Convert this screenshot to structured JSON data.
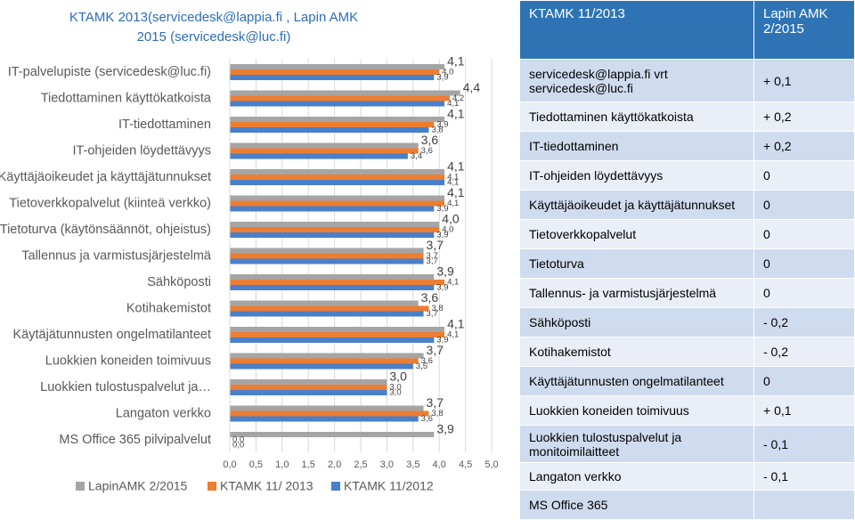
{
  "header_text": "KTAMK 2013(servicedesk@lappia.fi , Lapin AMK 2015 (servicedesk@luc.fi)",
  "chart_data": {
    "type": "bar",
    "orientation": "horizontal",
    "categories": [
      "IT-palvelupiste (servicedesk@luc.fi)",
      "Tiedottaminen  käyttökatkoista",
      "IT-tiedottaminen",
      "IT-ohjeiden löydettävyys",
      "Käyttäjäoikeudet ja käyttäjätunnukset",
      "Tietoverkkopalvelut (kiinteä verkko)",
      "Tietoturva (käytönsäännöt, ohjeistus)",
      "Tallennus ja varmistusjärjestelmä",
      "Sähköposti",
      "Kotihakemistot",
      "Käytäjätunnusten ongelmatilanteet",
      "Luokkien koneiden toimivuus",
      "Luokkien tulostuspalvelut ja…",
      "Langaton verkko",
      "MS Office 365 pilvipalvelut"
    ],
    "series": [
      {
        "name": "LapinAMK 2/2015",
        "color": "#a5a5a5",
        "values": [
          4.1,
          4.4,
          4.1,
          3.6,
          4.1,
          4.1,
          4.0,
          3.7,
          3.9,
          3.6,
          4.1,
          3.7,
          3.0,
          3.7,
          3.9
        ],
        "value_labels": [
          "4,1",
          "4,4",
          "4,1",
          "3,6",
          "4,1",
          "4,1",
          "4,0",
          "3,7",
          "3,9",
          "3,6",
          "4,1",
          "3,7",
          "3,0",
          "3,7",
          "3,9"
        ]
      },
      {
        "name": "KTAMK 11/ 2013",
        "color": "#ed7d31",
        "values": [
          4.0,
          4.2,
          3.9,
          3.6,
          4.1,
          4.1,
          4.0,
          3.7,
          4.1,
          3.8,
          4.1,
          3.6,
          3.0,
          3.8,
          0.0
        ],
        "value_labels": [
          "4,0",
          "4,2",
          "3,9",
          "3,6",
          "4,1",
          "4,1",
          "4,0",
          "3,7",
          "4,1",
          "3,8",
          "4,1",
          "3,6",
          "3,0",
          "3,8",
          "0,0"
        ]
      },
      {
        "name": "KTAMK 11/2012",
        "color": "#4a7fc9",
        "values": [
          3.9,
          4.1,
          3.8,
          3.4,
          4.1,
          3.9,
          3.9,
          3.7,
          3.9,
          3.7,
          3.9,
          3.5,
          3.0,
          3.6,
          0.0
        ],
        "value_labels": [
          "3,9",
          "4,1",
          "3,8",
          "3,4",
          "4,1",
          "3,9",
          "3,9",
          "3,7",
          "3,9",
          "3,7",
          "3,9",
          "3,5",
          "3,0",
          "3,6",
          "0,0"
        ]
      }
    ],
    "xlim": [
      0,
      5
    ],
    "xticks": [
      {
        "value": 0,
        "label": "0,0"
      },
      {
        "value": 0.5,
        "label": "0,5"
      },
      {
        "value": 1,
        "label": "1,0"
      },
      {
        "value": 1.5,
        "label": "1,5"
      },
      {
        "value": 2,
        "label": "2,0"
      },
      {
        "value": 2.5,
        "label": "2,5"
      },
      {
        "value": 3,
        "label": "3,0"
      },
      {
        "value": 3.5,
        "label": "3,5"
      },
      {
        "value": 4,
        "label": "4,0"
      },
      {
        "value": 4.5,
        "label": "4,5"
      },
      {
        "value": 5,
        "label": "5,0"
      }
    ],
    "grid": true,
    "legend": "bottom"
  },
  "table": {
    "headers": [
      "KTAMK 11/2013",
      "Lapin AMK 2/2015"
    ],
    "rows": [
      [
        "servicedesk@lappia.fi  vrt servicedesk@luc.fi",
        "+ 0,1"
      ],
      [
        "Tiedottaminen käyttökatkoista",
        "+ 0,2"
      ],
      [
        "IT-tiedottaminen",
        "+ 0,2"
      ],
      [
        "IT-ohjeiden löydettävyys",
        "0"
      ],
      [
        "Käyttäjäoikeudet ja käyttäjätunnukset",
        "0"
      ],
      [
        "Tietoverkkopalvelut",
        "0"
      ],
      [
        "Tietoturva",
        "0"
      ],
      [
        "Tallennus- ja varmistusjärjestelmä",
        "0"
      ],
      [
        "Sähköposti",
        "- 0,2"
      ],
      [
        "Kotihakemistot",
        "- 0,2"
      ],
      [
        "Käyttäjätunnusten ongelmatilanteet",
        "0"
      ],
      [
        "Luokkien koneiden toimivuus",
        "+ 0,1"
      ],
      [
        "Luokkien tulostuspalvelut ja monitoimilaitteet",
        "- 0,1"
      ],
      [
        "Langaton verkko",
        "- 0,1"
      ],
      [
        "MS Office 365"
      ]
    ]
  }
}
